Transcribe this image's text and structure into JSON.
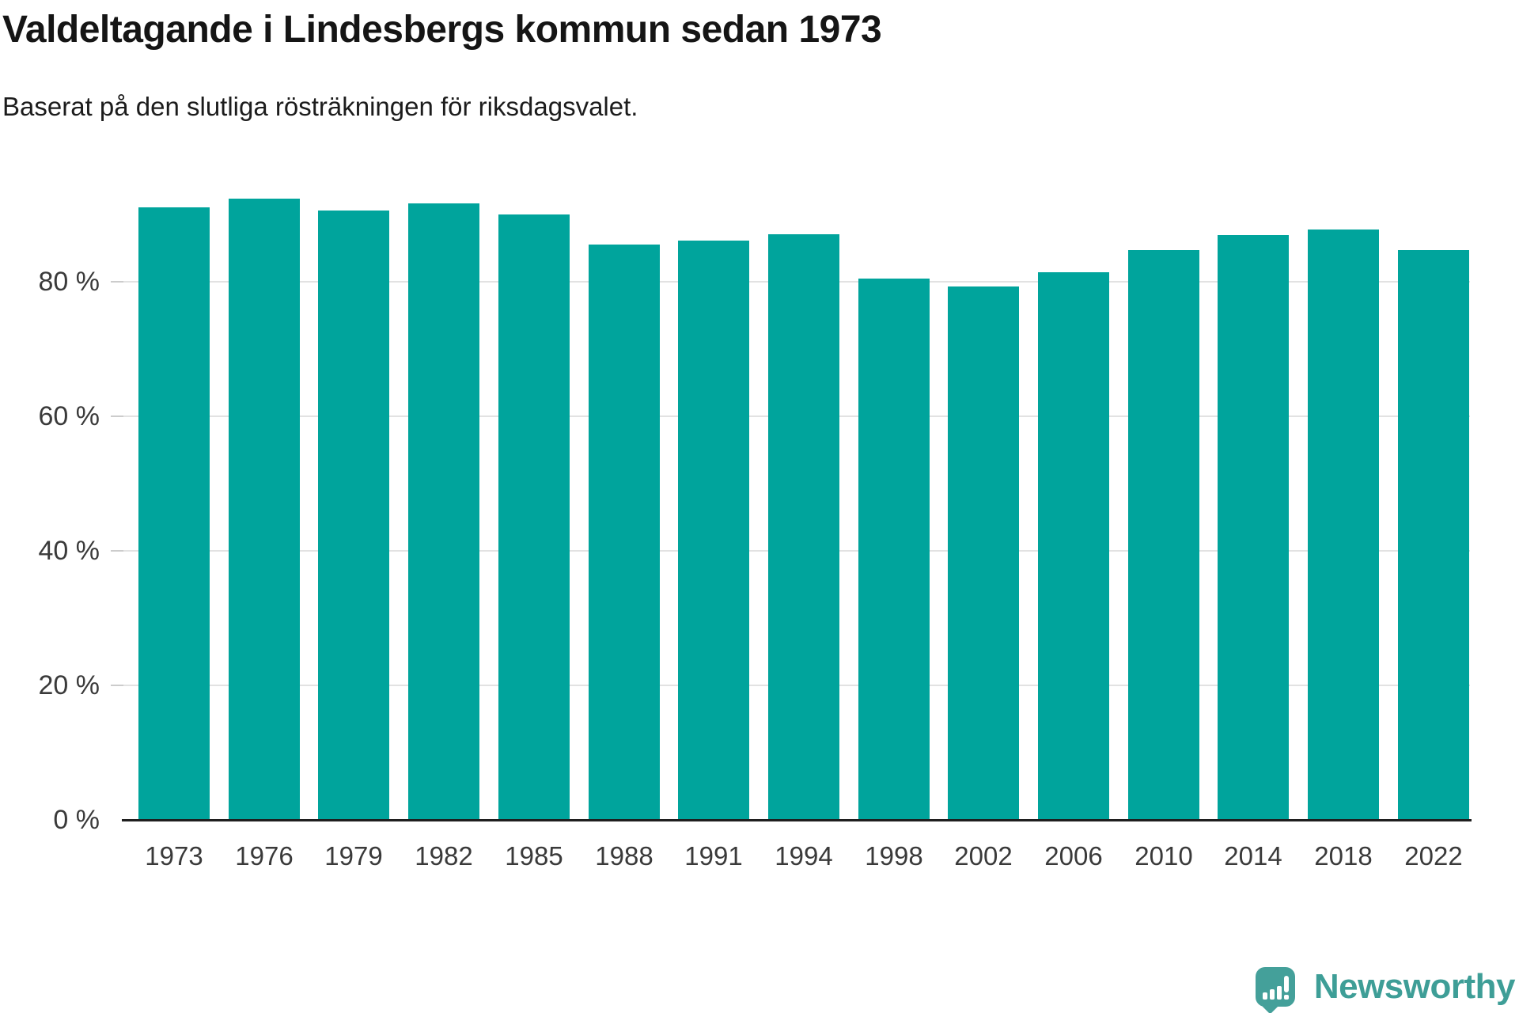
{
  "header": {
    "title": "Valdeltagande i Lindesbergs kommun sedan 1973",
    "subtitle": "Baserat på den slutliga rösträkningen för riksdagsvalet."
  },
  "chart_data": {
    "type": "bar",
    "title": "Valdeltagande i Lindesbergs kommun sedan 1973",
    "subtitle": "Baserat på den slutliga rösträkningen för riksdagsvalet.",
    "categories": [
      "1973",
      "1976",
      "1979",
      "1982",
      "1985",
      "1988",
      "1991",
      "1994",
      "1998",
      "2002",
      "2006",
      "2010",
      "2014",
      "2018",
      "2022"
    ],
    "values": [
      91.1,
      92.3,
      90.6,
      91.6,
      90.0,
      85.5,
      86.1,
      87.0,
      80.5,
      79.3,
      81.4,
      84.7,
      86.9,
      87.8,
      84.7
    ],
    "unit": "%",
    "xlabel": "",
    "ylabel": "",
    "ylim": [
      0,
      100
    ],
    "yticks": [
      0,
      20,
      40,
      60,
      80
    ],
    "ytick_labels": [
      "0 %",
      "20 %",
      "40 %",
      "60 %",
      "80 %"
    ],
    "grid": true,
    "legend": "none",
    "bar_color": "#00a49c"
  },
  "footer": {
    "brand": "Newsworthy"
  },
  "colors": {
    "bar": "#00a49c",
    "brand": "#3e9e97",
    "grid": "#e2e2e2",
    "tick": "#cccccc",
    "axis_line": "#1f1f1f",
    "axis_text": "#3a3a3a",
    "title_text": "#151515"
  }
}
